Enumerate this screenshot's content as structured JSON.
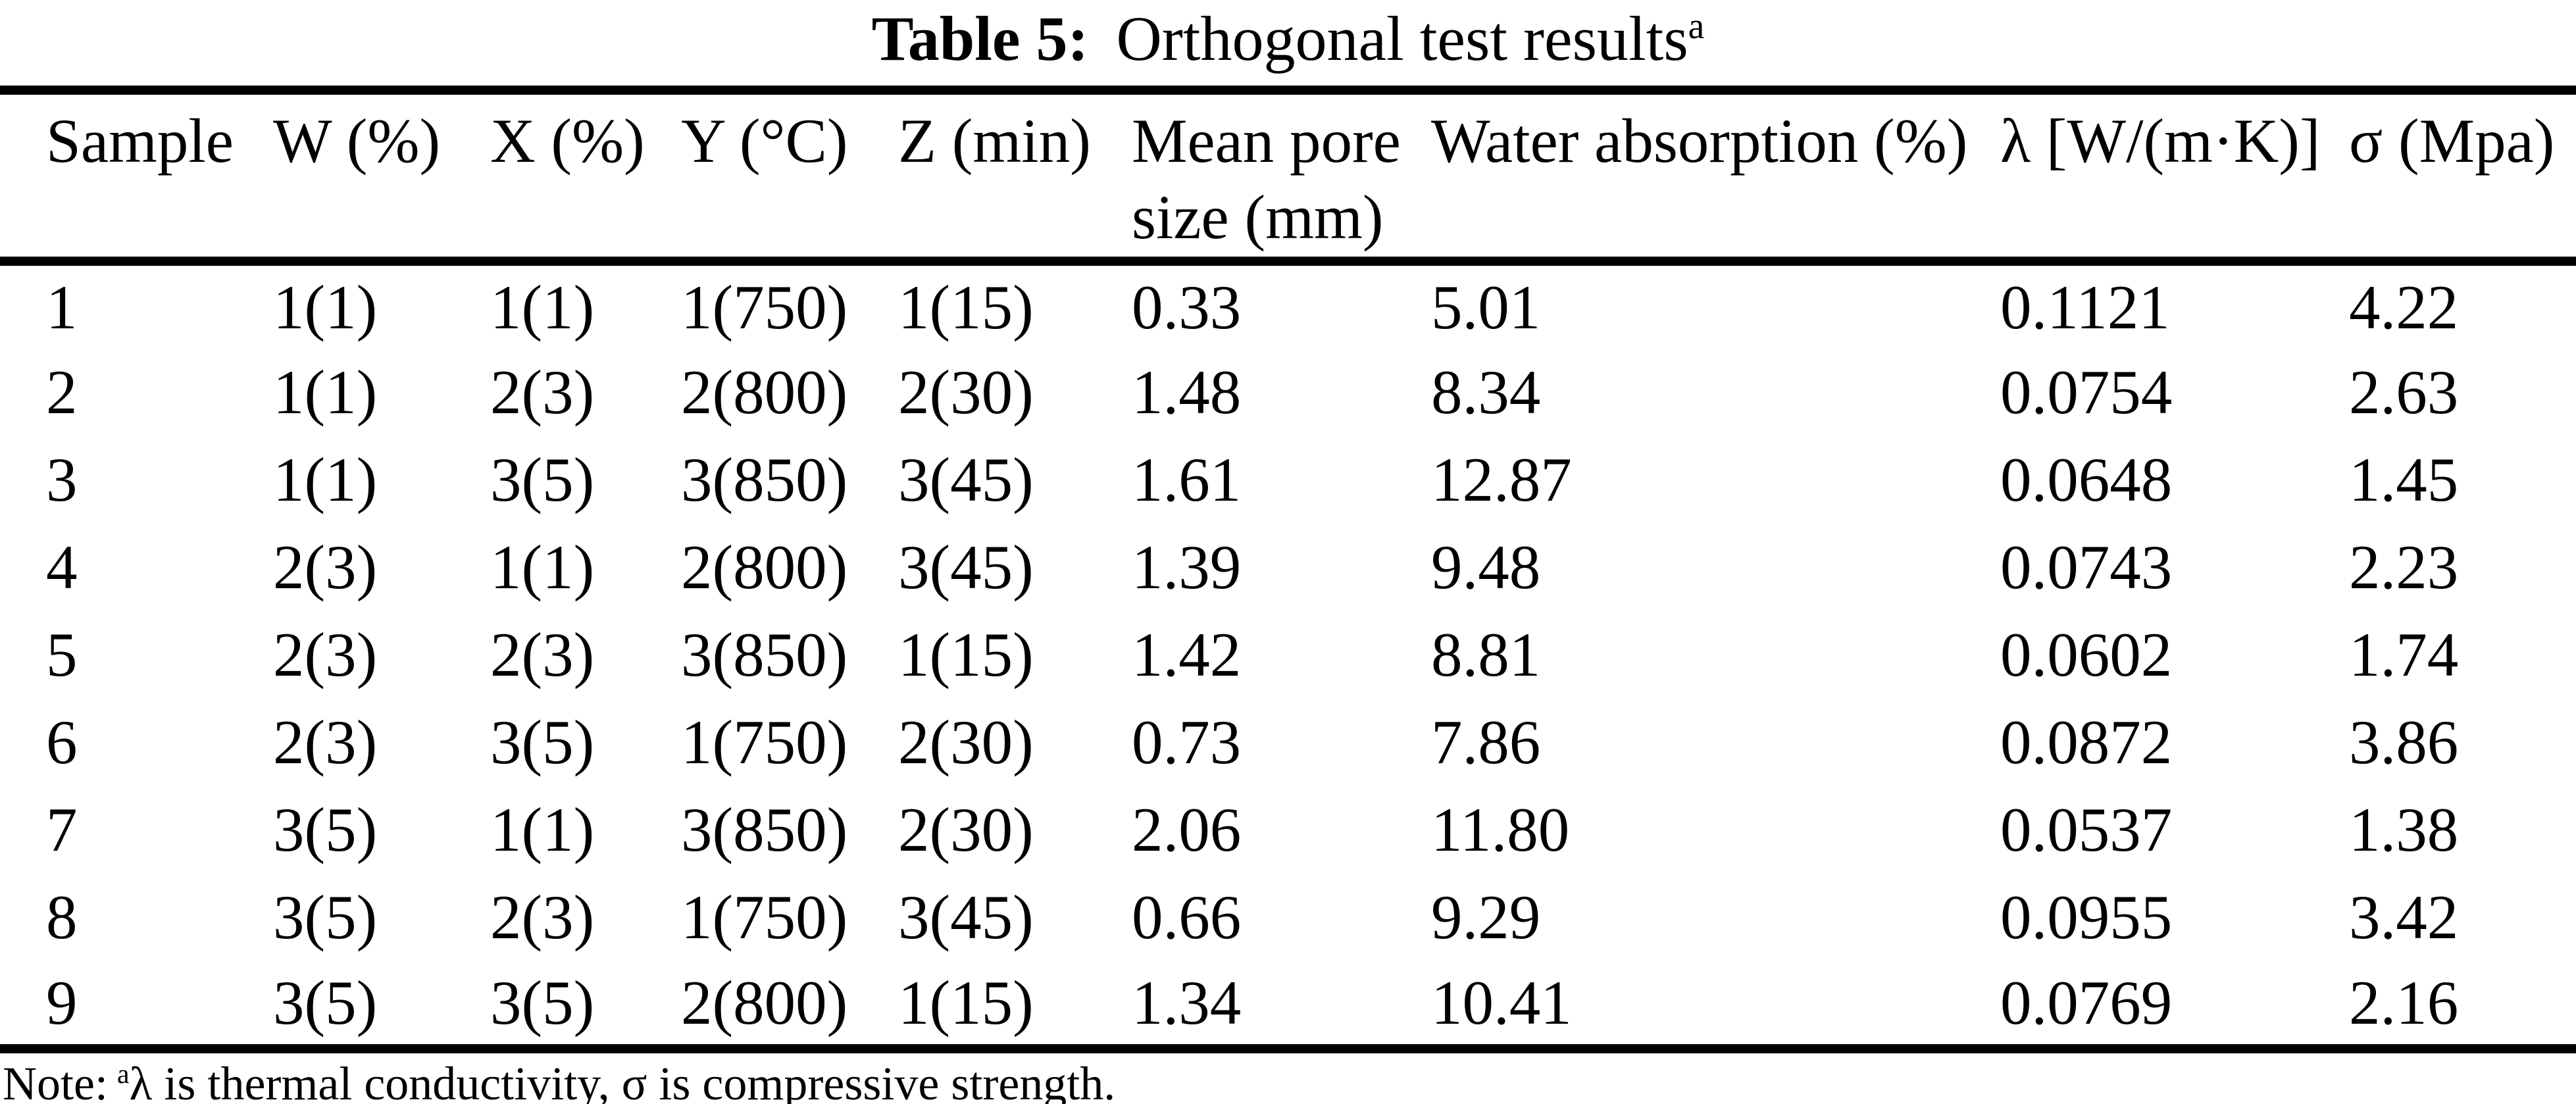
{
  "page": {
    "background": "#ffffff",
    "text_color": "#000000"
  },
  "title": {
    "label": "Table 5:",
    "text": "Orthogonal test results",
    "superscript": "a"
  },
  "table": {
    "columns": [
      "Sample",
      "W (%)",
      "X (%)",
      "Y (°C)",
      "Z (min)",
      "Mean pore size (mm)",
      "Water absorption (%)",
      "λ [W/(m·K)]",
      "σ (Mpa)"
    ],
    "rows": [
      [
        "1",
        "1(1)",
        "1(1)",
        "1(750)",
        "1(15)",
        "0.33",
        "5.01",
        "0.1121",
        "4.22"
      ],
      [
        "2",
        "1(1)",
        "2(3)",
        "2(800)",
        "2(30)",
        "1.48",
        "8.34",
        "0.0754",
        "2.63"
      ],
      [
        "3",
        "1(1)",
        "3(5)",
        "3(850)",
        "3(45)",
        "1.61",
        "12.87",
        "0.0648",
        "1.45"
      ],
      [
        "4",
        "2(3)",
        "1(1)",
        "2(800)",
        "3(45)",
        "1.39",
        "9.48",
        "0.0743",
        "2.23"
      ],
      [
        "5",
        "2(3)",
        "2(3)",
        "3(850)",
        "1(15)",
        "1.42",
        "8.81",
        "0.0602",
        "1.74"
      ],
      [
        "6",
        "2(3)",
        "3(5)",
        "1(750)",
        "2(30)",
        "0.73",
        "7.86",
        "0.0872",
        "3.86"
      ],
      [
        "7",
        "3(5)",
        "1(1)",
        "3(850)",
        "2(30)",
        "2.06",
        "11.80",
        "0.0537",
        "1.38"
      ],
      [
        "8",
        "3(5)",
        "2(3)",
        "1(750)",
        "3(45)",
        "0.66",
        "9.29",
        "0.0955",
        "3.42"
      ],
      [
        "9",
        "3(5)",
        "3(5)",
        "2(800)",
        "1(15)",
        "1.34",
        "10.41",
        "0.0769",
        "2.16"
      ]
    ]
  },
  "note": {
    "prefix": "Note:",
    "superscript": "a",
    "text": "λ is thermal conductivity, σ is compressive strength."
  }
}
